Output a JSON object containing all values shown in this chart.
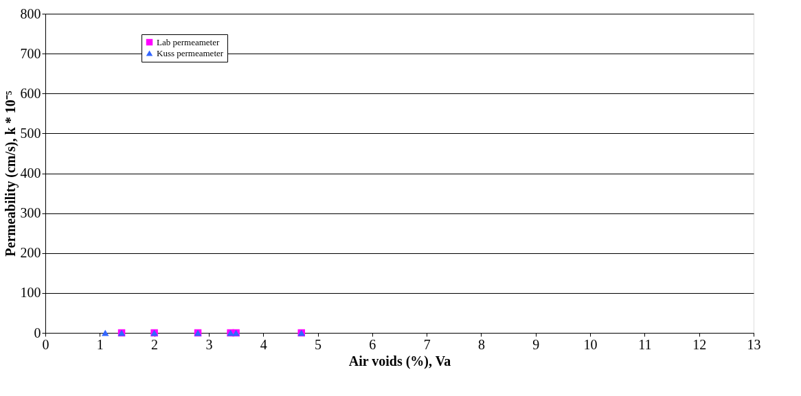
{
  "chart_data": {
    "type": "scatter",
    "xlabel": "Air voids (%), Va",
    "ylabel": "Permeability (cm/s), k * 10⁻⁵",
    "xlim": [
      0,
      13
    ],
    "xticks": [
      0,
      1,
      2,
      3,
      4,
      5,
      6,
      7,
      8,
      9,
      10,
      11,
      12,
      13
    ],
    "ylim": [
      0,
      800
    ],
    "yticks": [
      0,
      100,
      200,
      300,
      400,
      500,
      600,
      700,
      800
    ],
    "grid": "y",
    "legend": "top left",
    "series": [
      {
        "name": "Lab permeameter",
        "color": "#ff00ff",
        "marker": "square",
        "x": [
          1.4,
          2.0,
          2.8,
          3.4,
          3.5,
          4.7
        ],
        "values": [
          0,
          0,
          0,
          0,
          0,
          0
        ]
      },
      {
        "name": "Kuss permeameter",
        "color": "#3366ff",
        "marker": "triangle",
        "x": [
          1.1,
          1.4,
          2.0,
          2.8,
          3.4,
          3.5,
          4.7
        ],
        "values": [
          0,
          0,
          0,
          0,
          0,
          0,
          0
        ]
      }
    ]
  }
}
